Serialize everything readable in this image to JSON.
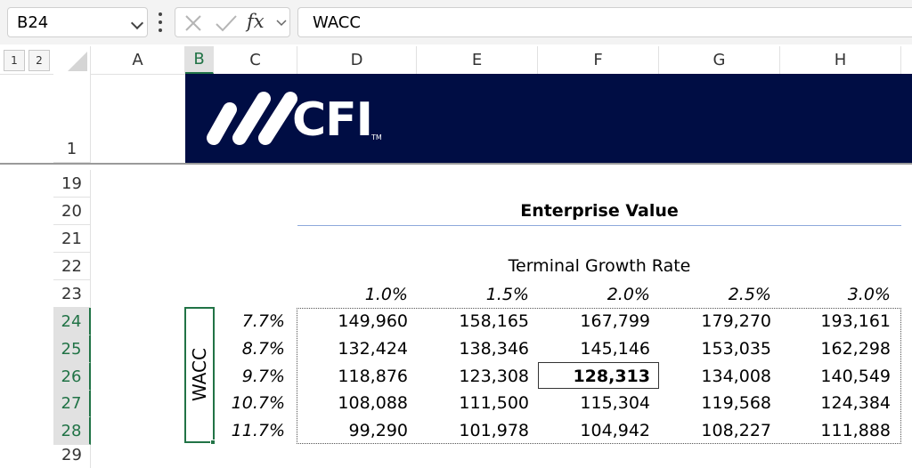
{
  "formula_bar": {
    "name_box": "B24",
    "fx_label": "fx",
    "formula": "WACC"
  },
  "outline_levels": [
    "1",
    "2"
  ],
  "columns": [
    "A",
    "B",
    "C",
    "D",
    "E",
    "F",
    "G",
    "H"
  ],
  "selected_column": "B",
  "rows": [
    "1",
    "19",
    "20",
    "21",
    "22",
    "23",
    "24",
    "25",
    "26",
    "27",
    "28",
    "29"
  ],
  "selected_rows": [
    "24",
    "25",
    "26",
    "27",
    "28"
  ],
  "banner": {
    "logo_text": "CFI",
    "trademark": "TM",
    "background": "#000d44"
  },
  "table": {
    "title": "Enterprise Value",
    "column_axis_label": "Terminal Growth Rate",
    "row_axis_label": "WACC",
    "growth_rates": [
      "1.0%",
      "1.5%",
      "2.0%",
      "2.5%",
      "3.0%"
    ],
    "waccs": [
      "7.7%",
      "8.7%",
      "9.7%",
      "10.7%",
      "11.7%"
    ],
    "values": [
      [
        "149,960",
        "158,165",
        "167,799",
        "179,270",
        "193,161"
      ],
      [
        "132,424",
        "138,346",
        "145,146",
        "153,035",
        "162,298"
      ],
      [
        "118,876",
        "123,308",
        "128,313",
        "134,008",
        "140,549"
      ],
      [
        "108,088",
        "111,500",
        "115,304",
        "119,568",
        "124,384"
      ],
      [
        "99,290",
        "101,978",
        "104,942",
        "108,227",
        "111,888"
      ]
    ],
    "highlighted_value": "128,313"
  },
  "colors": {
    "accent": "#217346",
    "banner": "#000d44",
    "title_rule": "#8ea9db"
  }
}
